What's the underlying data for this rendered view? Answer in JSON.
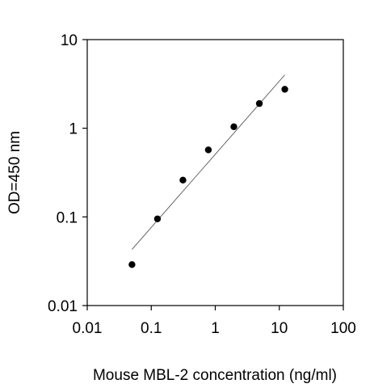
{
  "chart_data": {
    "type": "scatter",
    "title": "",
    "xlabel": "Mouse MBL-2 concentration (ng/ml)",
    "ylabel": "OD=450 nm",
    "x_scale": "log",
    "y_scale": "log",
    "xlim": [
      0.01,
      100
    ],
    "ylim": [
      0.01,
      10
    ],
    "x_ticks": [
      0.01,
      0.1,
      1,
      10,
      100
    ],
    "x_tick_labels": [
      "0.01",
      "0.1",
      "1",
      "10",
      "100"
    ],
    "y_ticks": [
      0.01,
      0.1,
      1,
      10
    ],
    "y_tick_labels": [
      "0.01",
      "0.1",
      "1",
      "10"
    ],
    "grid": false,
    "series": [
      {
        "type": "scatter",
        "x": [
          0.05,
          0.125,
          0.3125,
          0.78,
          1.95,
          4.88,
          12.2
        ],
        "y": [
          0.029,
          0.095,
          0.26,
          0.57,
          1.04,
          1.9,
          2.75
        ]
      }
    ],
    "fit_line": {
      "x": [
        0.05,
        12.2
      ],
      "y": [
        0.043,
        4.0
      ]
    },
    "colors": {
      "marker": "#000000",
      "fit_line": "#555555",
      "axis": "#000000"
    }
  }
}
